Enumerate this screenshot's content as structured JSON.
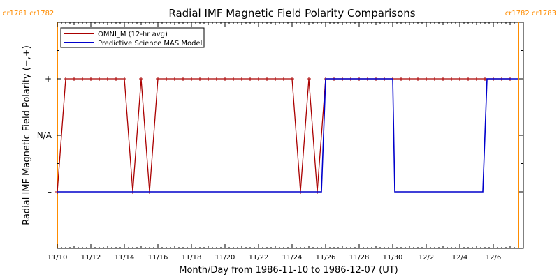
{
  "chart_data": {
    "type": "line",
    "title": "Radial IMF Magnetic Field Polarity Comparisons",
    "xlabel": "Month/Day from 1986-11-10 to 1986-12-07 (UT)",
    "ylabel": "Radial IMF Magnetic Field Polarity (−,+)",
    "x_start": "1986-11-10",
    "x_end": "1986-12-07",
    "x_tick_labels": [
      "11/10",
      "11/12",
      "11/14",
      "11/16",
      "11/18",
      "11/20",
      "11/22",
      "11/24",
      "11/26",
      "11/28",
      "11/30",
      "12/2",
      "12/4",
      "12/6"
    ],
    "y_tick_labels": [
      "–",
      "N/A",
      "+"
    ],
    "y_range": [
      -2,
      2
    ],
    "grid": false,
    "legend_position": "top-left",
    "carrington_markers": [
      {
        "date": "1986-11-10T00:00",
        "label": "cr1781 cr1782",
        "side": "left"
      },
      {
        "date": "1986-12-07T12:00",
        "label": "cr1782 cr1783",
        "side": "right"
      }
    ],
    "series": [
      {
        "name": "OMNI_M (12-hr avg)",
        "color": "#aa0000",
        "marker": "+",
        "x": [
          "1986-11-10T00:00",
          "1986-11-10T12:00",
          "1986-11-11T00:00",
          "1986-11-11T12:00",
          "1986-11-12T00:00",
          "1986-11-12T12:00",
          "1986-11-13T00:00",
          "1986-11-13T12:00",
          "1986-11-14T00:00",
          "1986-11-14T12:00",
          "1986-11-15T00:00",
          "1986-11-15T12:00",
          "1986-11-16T00:00",
          "1986-11-16T12:00",
          "1986-11-17T00:00",
          "1986-11-17T12:00",
          "1986-11-18T00:00",
          "1986-11-18T12:00",
          "1986-11-19T00:00",
          "1986-11-19T12:00",
          "1986-11-20T00:00",
          "1986-11-20T12:00",
          "1986-11-21T00:00",
          "1986-11-21T12:00",
          "1986-11-22T00:00",
          "1986-11-22T12:00",
          "1986-11-23T00:00",
          "1986-11-23T12:00",
          "1986-11-24T00:00",
          "1986-11-24T12:00",
          "1986-11-25T00:00",
          "1986-11-25T12:00",
          "1986-11-26T00:00",
          "1986-11-26T12:00",
          "1986-11-27T00:00",
          "1986-11-27T12:00",
          "1986-11-28T00:00",
          "1986-11-28T12:00",
          "1986-11-29T00:00",
          "1986-11-29T12:00",
          "1986-11-30T00:00",
          "1986-11-30T12:00",
          "1986-12-01T00:00",
          "1986-12-01T12:00",
          "1986-12-02T00:00",
          "1986-12-02T12:00",
          "1986-12-03T00:00",
          "1986-12-03T12:00",
          "1986-12-04T00:00",
          "1986-12-04T12:00",
          "1986-12-05T00:00",
          "1986-12-05T12:00",
          "1986-12-06T00:00",
          "1986-12-06T12:00",
          "1986-12-07T00:00"
        ],
        "y": [
          -1,
          1,
          1,
          1,
          1,
          1,
          1,
          1,
          1,
          -1,
          1,
          -1,
          1,
          1,
          1,
          1,
          1,
          1,
          1,
          1,
          1,
          1,
          1,
          1,
          1,
          1,
          1,
          1,
          1,
          -1,
          1,
          -1,
          1,
          1,
          1,
          1,
          1,
          1,
          1,
          1,
          1,
          1,
          1,
          1,
          1,
          1,
          1,
          1,
          1,
          1,
          1,
          1,
          1,
          1,
          1
        ]
      },
      {
        "name": "Predictive Science MAS Model",
        "color": "#0000cc",
        "x": [
          "1986-11-10T00:00",
          "1986-11-25T18:00",
          "1986-11-26T00:00",
          "1986-11-30T00:00",
          "1986-11-30T03:00",
          "1986-12-05T09:00",
          "1986-12-05T15:00",
          "1986-12-07T12:00"
        ],
        "y": [
          -1,
          -1,
          1,
          1,
          -1,
          -1,
          1,
          1
        ]
      }
    ]
  }
}
